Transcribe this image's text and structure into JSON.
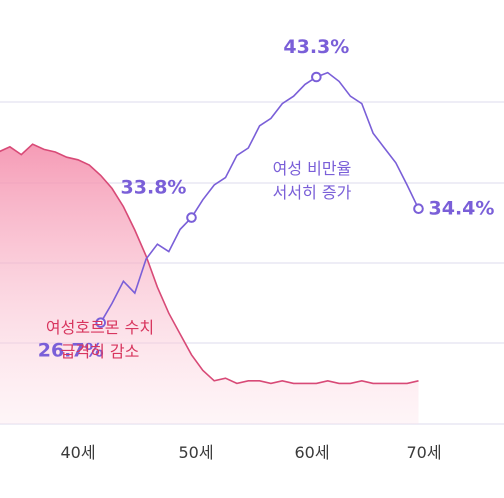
{
  "chart_data": {
    "type": "line",
    "x_ticks": [
      "40세",
      "50세",
      "60세",
      "70세"
    ],
    "series": [
      {
        "key": "obesity",
        "color": "#7a5fd8",
        "x": [
          42,
          43,
          44,
          45,
          46,
          47,
          48,
          49,
          50,
          51,
          52,
          53,
          54,
          55,
          56,
          57,
          58,
          59,
          60,
          61,
          62,
          63,
          64,
          65,
          66,
          67,
          68,
          69,
          70
        ],
        "values": [
          26.7,
          28.0,
          29.5,
          28.7,
          31.0,
          32.0,
          31.5,
          33.0,
          33.8,
          35.0,
          36.0,
          36.5,
          38.0,
          38.5,
          40.0,
          40.5,
          41.5,
          42.0,
          42.8,
          43.3,
          43.6,
          43.0,
          42.0,
          41.5,
          39.5,
          38.5,
          37.5,
          36.0,
          34.4
        ],
        "labels": [
          {
            "x": 42,
            "value": 26.7,
            "text": "26.7%"
          },
          {
            "x": 50,
            "value": 33.8,
            "text": "33.8%"
          },
          {
            "x": 61,
            "value": 43.3,
            "text": "43.3%"
          },
          {
            "x": 70,
            "value": 34.4,
            "text": "34.4%"
          }
        ],
        "annotation_lines": [
          "여성 비만율",
          "서서히 증가"
        ]
      },
      {
        "key": "hormone",
        "color": "#d84a77",
        "fill": "#f7b7c9",
        "x": [
          33,
          34,
          35,
          36,
          37,
          38,
          39,
          40,
          41,
          42,
          43,
          44,
          45,
          46,
          47,
          48,
          49,
          50,
          51,
          52,
          53,
          54,
          55,
          56,
          57,
          58,
          59,
          60,
          61,
          62,
          63,
          64,
          65,
          66,
          67,
          68,
          69,
          70
        ],
        "values": [
          100,
          102,
          99,
          103,
          101,
          100,
          98,
          97,
          95,
          91,
          86,
          79,
          70,
          60,
          48,
          38,
          30,
          22,
          16,
          12,
          13,
          11,
          12,
          12,
          11,
          12,
          11,
          11,
          11,
          12,
          11,
          11,
          12,
          11,
          11,
          11,
          11,
          12
        ],
        "annotation_lines": [
          "여성호르몬 수치",
          "급격히 감소"
        ]
      }
    ],
    "grid": true
  }
}
